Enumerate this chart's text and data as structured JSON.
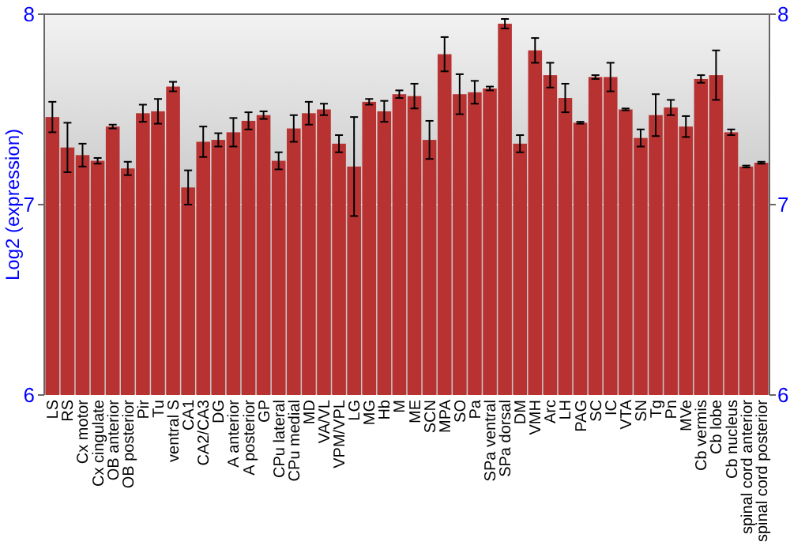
{
  "chart_data": {
    "type": "bar",
    "ylabel": "Log2 (expression)",
    "categories": [
      "LS",
      "RS",
      "Cx motor",
      "Cx cingulate",
      "OB anterior",
      "OB posterior",
      "Pir",
      "Tu",
      "ventral S",
      "CA1",
      "CA2/CA3",
      "DG",
      "A anterior",
      "A posterior",
      "GP",
      "CPu lateral",
      "CPu medial",
      "MD",
      "VA/VL",
      "VPM/VPL",
      "LG",
      "MG",
      "Hb",
      "M",
      "ME",
      "SCN",
      "MPA",
      "SO",
      "Pa",
      "SPa ventral",
      "SPa dorsal",
      "DM",
      "VMH",
      "Arc",
      "LH",
      "PAG",
      "SC",
      "IC",
      "VTA",
      "SN",
      "Tg",
      "Pn",
      "MVe",
      "Cb vermis",
      "Cb lobe",
      "Cb nucleus",
      "spinal cord anterior",
      "spinal cord posterior"
    ],
    "values": [
      7.46,
      7.3,
      7.26,
      7.23,
      7.41,
      7.19,
      7.48,
      7.49,
      7.62,
      7.09,
      7.33,
      7.34,
      7.38,
      7.44,
      7.47,
      7.23,
      7.4,
      7.48,
      7.5,
      7.32,
      7.2,
      7.54,
      7.49,
      7.58,
      7.57,
      7.34,
      7.79,
      7.58,
      7.59,
      7.61,
      7.95,
      7.32,
      7.81,
      7.68,
      7.56,
      7.43,
      7.67,
      7.67,
      7.5,
      7.35,
      7.47,
      7.51,
      7.41,
      7.66,
      7.68,
      7.38,
      7.2,
      7.22
    ],
    "errors": [
      0.08,
      0.13,
      0.06,
      0.015,
      0.01,
      0.035,
      0.045,
      0.065,
      0.025,
      0.09,
      0.08,
      0.035,
      0.075,
      0.045,
      0.02,
      0.045,
      0.07,
      0.06,
      0.03,
      0.045,
      0.26,
      0.015,
      0.055,
      0.02,
      0.065,
      0.1,
      0.09,
      0.105,
      0.06,
      0.01,
      0.025,
      0.045,
      0.065,
      0.065,
      0.075,
      0.005,
      0.01,
      0.075,
      0.005,
      0.045,
      0.11,
      0.04,
      0.055,
      0.02,
      0.13,
      0.015,
      0.005,
      0.005
    ],
    "color": "#b83232",
    "ylim": [
      6,
      8
    ],
    "yticks": [
      6,
      7,
      8
    ],
    "y2lim": [
      6,
      8
    ],
    "y2ticks": [
      6,
      7,
      8
    ],
    "grid": "y"
  }
}
